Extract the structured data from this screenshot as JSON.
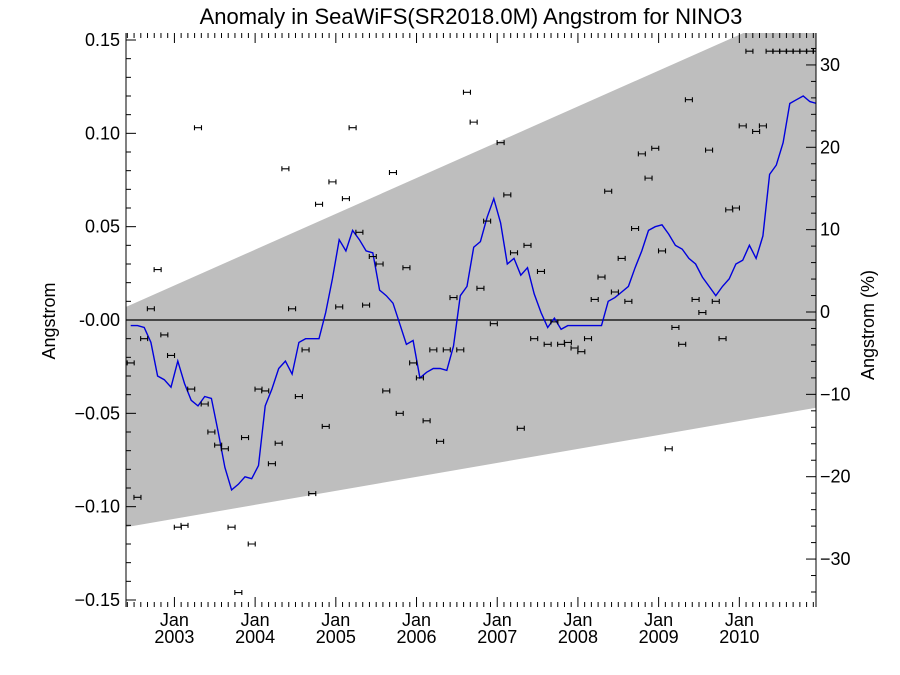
{
  "chart_data": {
    "type": "line",
    "title": "Anomaly in SeaWiFS(SR2018.0M) Angstrom for NINO3",
    "ylabel": "Angstrom",
    "y2label": "Angstrom (%)",
    "xlim": [
      2002.4,
      2010.95
    ],
    "ylim": [
      -0.15,
      0.15
    ],
    "y2lim": [
      -34.0,
      34.0
    ],
    "grid": false,
    "x_ticks": [
      {
        "x": 2003.0,
        "month": "Jan",
        "year": "2003"
      },
      {
        "x": 2004.0,
        "month": "Jan",
        "year": "2004"
      },
      {
        "x": 2005.0,
        "month": "Jan",
        "year": "2005"
      },
      {
        "x": 2006.0,
        "month": "Jan",
        "year": "2006"
      },
      {
        "x": 2007.0,
        "month": "Jan",
        "year": "2007"
      },
      {
        "x": 2008.0,
        "month": "Jan",
        "year": "2008"
      },
      {
        "x": 2009.0,
        "month": "Jan",
        "year": "2009"
      },
      {
        "x": 2010.0,
        "month": "Jan",
        "year": "2010"
      }
    ],
    "y_ticks": [
      {
        "v": 0.15,
        "label": "0.15"
      },
      {
        "v": 0.1,
        "label": "0.10"
      },
      {
        "v": 0.05,
        "label": "0.05"
      },
      {
        "v": 0.0,
        "label": "-0.00"
      },
      {
        "v": -0.05,
        "label": "−0.05"
      },
      {
        "v": -0.1,
        "label": "−0.10"
      },
      {
        "v": -0.15,
        "label": "−0.15"
      }
    ],
    "y2_ticks": [
      {
        "v": 30,
        "label": "30"
      },
      {
        "v": 20,
        "label": "20"
      },
      {
        "v": 10,
        "label": "10"
      },
      {
        "v": 0,
        "label": "0"
      },
      {
        "v": -10,
        "label": "−10"
      },
      {
        "v": -20,
        "label": "−20"
      },
      {
        "v": -30,
        "label": "−30"
      }
    ],
    "trend_band": {
      "x": [
        2002.4,
        2010.95
      ],
      "upper": [
        0.007,
        0.171
      ],
      "lower": [
        -0.111,
        -0.047
      ]
    },
    "zero_line": 0.0,
    "smoothed_series": {
      "x": [
        2002.458,
        2002.542,
        2002.625,
        2002.708,
        2002.792,
        2002.875,
        2002.958,
        2003.042,
        2003.125,
        2003.208,
        2003.292,
        2003.375,
        2003.458,
        2003.542,
        2003.625,
        2003.708,
        2003.792,
        2003.875,
        2003.958,
        2004.042,
        2004.125,
        2004.208,
        2004.292,
        2004.375,
        2004.458,
        2004.542,
        2004.625,
        2004.708,
        2004.792,
        2004.875,
        2004.958,
        2005.042,
        2005.125,
        2005.208,
        2005.292,
        2005.375,
        2005.458,
        2005.542,
        2005.625,
        2005.708,
        2005.792,
        2005.875,
        2005.958,
        2006.042,
        2006.125,
        2006.208,
        2006.292,
        2006.375,
        2006.458,
        2006.542,
        2006.625,
        2006.708,
        2006.792,
        2006.875,
        2006.958,
        2007.042,
        2007.125,
        2007.208,
        2007.292,
        2007.375,
        2007.458,
        2007.542,
        2007.625,
        2007.708,
        2007.792,
        2007.875,
        2007.958,
        2008.042,
        2008.125,
        2008.208,
        2008.292,
        2008.375,
        2008.458,
        2008.542,
        2008.625,
        2008.708,
        2008.792,
        2008.875,
        2008.958,
        2009.042,
        2009.125,
        2009.208,
        2009.292,
        2009.375,
        2009.458,
        2009.542,
        2009.625,
        2009.708,
        2009.792,
        2009.875,
        2009.958,
        2010.042,
        2010.125,
        2010.208,
        2010.292,
        2010.375,
        2010.458,
        2010.542,
        2010.625,
        2010.708,
        2010.792,
        2010.875,
        2010.958
      ],
      "y": [
        -0.003,
        -0.003,
        -0.004,
        -0.012,
        -0.03,
        -0.032,
        -0.036,
        -0.022,
        -0.034,
        -0.043,
        -0.046,
        -0.041,
        -0.042,
        -0.06,
        -0.079,
        -0.091,
        -0.088,
        -0.084,
        -0.085,
        -0.078,
        -0.046,
        -0.037,
        -0.026,
        -0.022,
        -0.029,
        -0.012,
        -0.01,
        -0.01,
        -0.01,
        0.004,
        0.022,
        0.043,
        0.037,
        0.048,
        0.043,
        0.037,
        0.036,
        0.016,
        0.013,
        0.009,
        -0.002,
        -0.013,
        -0.011,
        -0.031,
        -0.028,
        -0.026,
        -0.026,
        -0.027,
        -0.014,
        0.013,
        0.018,
        0.039,
        0.042,
        0.055,
        0.065,
        0.052,
        0.03,
        0.033,
        0.024,
        0.028,
        0.014,
        0.004,
        -0.004,
        0.001,
        -0.005,
        -0.003,
        -0.003,
        -0.003,
        -0.003,
        -0.003,
        -0.003,
        0.01,
        0.012,
        0.015,
        0.018,
        0.028,
        0.037,
        0.048,
        0.05,
        0.051,
        0.046,
        0.04,
        0.038,
        0.033,
        0.03,
        0.023,
        0.018,
        0.013,
        0.018,
        0.022,
        0.03,
        0.032,
        0.04,
        0.033,
        0.045,
        0.078,
        0.083,
        0.095,
        0.116,
        0.118,
        0.12,
        0.117,
        0.116
      ]
    },
    "monthly_points": {
      "x": [
        2002.458,
        2002.542,
        2002.625,
        2002.708,
        2002.792,
        2002.875,
        2002.958,
        2003.042,
        2003.125,
        2003.208,
        2003.292,
        2003.375,
        2003.458,
        2003.542,
        2003.625,
        2003.708,
        2003.792,
        2003.875,
        2003.958,
        2004.042,
        2004.125,
        2004.208,
        2004.292,
        2004.375,
        2004.458,
        2004.542,
        2004.625,
        2004.708,
        2004.792,
        2004.875,
        2004.958,
        2005.042,
        2005.125,
        2005.208,
        2005.292,
        2005.375,
        2005.458,
        2005.542,
        2005.625,
        2005.708,
        2005.792,
        2005.875,
        2005.958,
        2006.042,
        2006.125,
        2006.208,
        2006.292,
        2006.375,
        2006.458,
        2006.542,
        2006.625,
        2006.708,
        2006.792,
        2006.875,
        2006.958,
        2007.042,
        2007.125,
        2007.208,
        2007.292,
        2007.375,
        2007.458,
        2007.542,
        2007.625,
        2007.708,
        2007.792,
        2007.875,
        2007.958,
        2008.042,
        2008.125,
        2008.208,
        2008.292,
        2008.375,
        2008.458,
        2008.542,
        2008.625,
        2008.708,
        2008.792,
        2008.875,
        2008.958,
        2009.042,
        2009.125,
        2009.208,
        2009.292,
        2009.375,
        2009.458,
        2009.542,
        2009.625,
        2009.708,
        2009.792,
        2009.875,
        2009.958,
        2010.042,
        2010.125,
        2010.208,
        2010.292,
        2010.375,
        2010.458,
        2010.542,
        2010.625,
        2010.708,
        2010.792,
        2010.875,
        2010.958
      ],
      "y": [
        -0.023,
        -0.095,
        -0.01,
        0.006,
        0.027,
        -0.008,
        -0.019,
        -0.111,
        -0.11,
        -0.037,
        0.103,
        -0.045,
        -0.06,
        -0.067,
        -0.069,
        -0.111,
        -0.146,
        -0.063,
        -0.12,
        -0.037,
        -0.038,
        -0.077,
        -0.066,
        0.081,
        0.006,
        -0.041,
        -0.016,
        -0.093,
        0.062,
        -0.057,
        0.074,
        0.007,
        0.065,
        0.103,
        0.047,
        0.008,
        0.034,
        0.03,
        -0.038,
        0.079,
        -0.05,
        0.028,
        -0.023,
        -0.031,
        -0.054,
        -0.016,
        -0.065,
        -0.016,
        0.012,
        -0.016,
        0.122,
        0.106,
        0.017,
        0.053,
        -0.002,
        0.095,
        0.067,
        0.036,
        -0.058,
        0.04,
        -0.01,
        0.026,
        -0.013,
        -0.001,
        -0.013,
        -0.012,
        -0.015,
        -0.017,
        -0.01,
        0.011,
        0.023,
        0.069,
        0.015,
        0.033,
        0.01,
        0.049,
        0.089,
        0.076,
        0.092,
        0.037,
        -0.069,
        -0.004,
        -0.013,
        0.118,
        0.011,
        0.004,
        0.091,
        0.01,
        -0.01,
        0.059,
        0.06,
        0.104,
        0.144,
        0.101,
        0.104,
        0.144,
        0.144,
        0.144,
        0.144,
        0.144,
        0.144,
        0.144,
        0.144
      ]
    },
    "colors": {
      "band": "#bebebe",
      "line": "#0000dd",
      "points": "#000000",
      "axes": "#000000"
    }
  }
}
